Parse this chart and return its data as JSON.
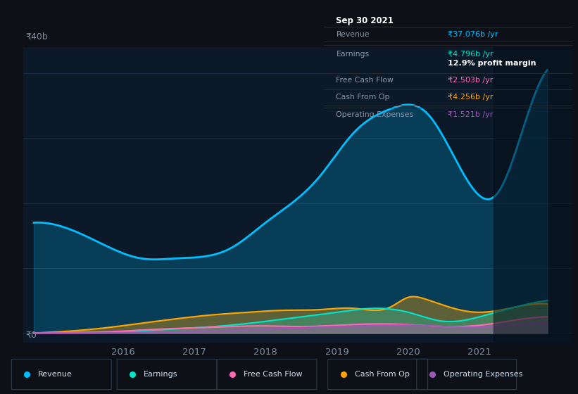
{
  "bg_color": "#0d1117",
  "plot_bg_color": "#0b1929",
  "grid_color": "#1a2e45",
  "ylabel_text": "₹40b",
  "y0_text": "₹0",
  "x_ticks": [
    2016,
    2017,
    2018,
    2019,
    2020,
    2021
  ],
  "x_range": [
    2014.6,
    2022.3
  ],
  "y_range": [
    -1.5,
    44
  ],
  "tooltip_title": "Sep 30 2021",
  "tooltip_rows": [
    {
      "label": "Revenue",
      "value": "₹37.076b /yr",
      "value_color": "#00bfff"
    },
    {
      "label": "Earnings",
      "value": "₹4.796b /yr",
      "value_color": "#00e5cc"
    },
    {
      "label": "",
      "value": "12.9% profit margin",
      "value_color": "#ffffff"
    },
    {
      "label": "Free Cash Flow",
      "value": "₹2.503b /yr",
      "value_color": "#ff69b4"
    },
    {
      "label": "Cash From Op",
      "value": "₹4.256b /yr",
      "value_color": "#ffa500"
    },
    {
      "label": "Operating Expenses",
      "value": "₹1.521b /yr",
      "value_color": "#9b59b6"
    }
  ],
  "revenue_x": [
    2014.75,
    2015.25,
    2015.75,
    2016.25,
    2016.75,
    2017.5,
    2018.0,
    2018.75,
    2019.25,
    2019.75,
    2020.25,
    2020.75,
    2021.25,
    2021.75,
    2021.95
  ],
  "revenue_y": [
    17.0,
    16.0,
    13.5,
    11.5,
    11.5,
    13.0,
    17.0,
    24.0,
    31.0,
    34.5,
    34.0,
    25.0,
    21.5,
    36.0,
    40.5
  ],
  "earnings_x": [
    2014.75,
    2015.5,
    2016.0,
    2016.5,
    2017.0,
    2017.5,
    2018.0,
    2018.5,
    2019.0,
    2019.5,
    2020.0,
    2020.5,
    2021.0,
    2021.5,
    2021.95
  ],
  "earnings_y": [
    0.0,
    0.1,
    0.2,
    0.5,
    0.8,
    1.2,
    1.8,
    2.5,
    3.2,
    3.8,
    3.2,
    1.8,
    2.5,
    4.0,
    5.0
  ],
  "fcf_x": [
    2014.75,
    2015.5,
    2016.0,
    2016.5,
    2017.0,
    2017.5,
    2018.0,
    2018.5,
    2019.0,
    2019.5,
    2020.0,
    2020.5,
    2021.0,
    2021.5,
    2021.95
  ],
  "fcf_y": [
    0.0,
    0.1,
    0.3,
    0.6,
    0.8,
    1.0,
    1.1,
    1.0,
    1.2,
    1.4,
    1.3,
    1.0,
    1.2,
    2.0,
    2.5
  ],
  "cfo_x": [
    2014.75,
    2015.25,
    2015.75,
    2016.25,
    2016.75,
    2017.25,
    2017.75,
    2018.25,
    2018.75,
    2019.25,
    2019.75,
    2020.0,
    2020.25,
    2020.75,
    2021.0,
    2021.5,
    2021.95
  ],
  "cfo_y": [
    0.0,
    0.3,
    0.8,
    1.5,
    2.2,
    2.8,
    3.2,
    3.5,
    3.6,
    3.8,
    4.0,
    5.5,
    5.2,
    3.5,
    3.2,
    4.0,
    4.5
  ],
  "opex_x": [
    2014.75,
    2015.5,
    2016.0,
    2016.5,
    2017.0,
    2017.5,
    2018.0,
    2018.5,
    2019.0,
    2019.5,
    2020.0,
    2020.5,
    2021.0,
    2021.5,
    2021.95
  ],
  "opex_y": [
    0.0,
    0.0,
    0.05,
    0.1,
    0.2,
    0.4,
    0.6,
    0.8,
    1.0,
    1.1,
    1.2,
    1.0,
    0.9,
    1.3,
    1.5
  ],
  "revenue_color": "#00bfff",
  "earnings_color": "#00e5cc",
  "fcf_color": "#ff69b4",
  "cfo_color": "#ffa500",
  "opex_color": "#9b59b6",
  "legend_items": [
    {
      "label": "Revenue",
      "color": "#00bfff"
    },
    {
      "label": "Earnings",
      "color": "#00e5cc"
    },
    {
      "label": "Free Cash Flow",
      "color": "#ff69b4"
    },
    {
      "label": "Cash From Op",
      "color": "#ffa500"
    },
    {
      "label": "Operating Expenses",
      "color": "#9b59b6"
    }
  ],
  "dark_overlay_start": 2021.2,
  "highlight_x": 2021.75
}
